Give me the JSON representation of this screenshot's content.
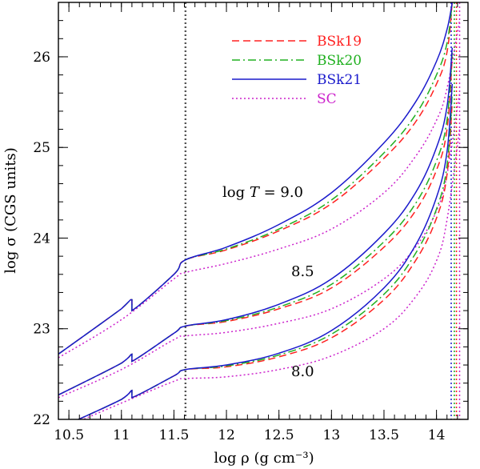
{
  "chart_data": {
    "type": "line",
    "xlabel": "log ρ (g cm⁻³)",
    "ylabel": "log σ (CGS units)",
    "xlim": [
      10.4,
      14.3
    ],
    "ylim": [
      22.0,
      26.6
    ],
    "xticks": [
      "10.5",
      "11",
      "11.5",
      "12",
      "12.5",
      "13",
      "13.5",
      "14"
    ],
    "xtick_values": [
      10.5,
      11.0,
      11.5,
      12.0,
      12.5,
      13.0,
      13.5,
      14.0
    ],
    "yticks": [
      "22",
      "23",
      "24",
      "25",
      "26"
    ],
    "ytick_values": [
      22,
      23,
      24,
      25,
      26
    ],
    "legend": [
      {
        "name": "BSk19",
        "color": "#ff2020",
        "dash": "dashed"
      },
      {
        "name": "BSk20",
        "color": "#20b020",
        "dash": "dashdot"
      },
      {
        "name": "BSk21",
        "color": "#1a1acc",
        "dash": "solid"
      },
      {
        "name": "SC",
        "color": "#cc22cc",
        "dash": "dotted"
      }
    ],
    "vertical_lines": [
      {
        "x": 11.61,
        "color": "#555555"
      },
      {
        "x": 14.14,
        "color": "#1a1acc"
      },
      {
        "x": 14.17,
        "color": "#20b020"
      },
      {
        "x": 14.19,
        "color": "#ff2020"
      },
      {
        "x": 14.22,
        "color": "#cc22cc"
      }
    ],
    "annotations": [
      {
        "label_prefix": "log ",
        "label_var": "T",
        "label_suffix": " = 9.0"
      },
      {
        "label": "8.5"
      },
      {
        "label": "8.0"
      }
    ],
    "groups": [
      {
        "name": "logT=9.0",
        "series": [
          {
            "name": "BSk21",
            "x": [
              10.4,
              11.0,
              11.1,
              11.1,
              11.5,
              11.61,
              12.0,
              12.5,
              13.0,
              13.5,
              13.8,
              14.0,
              14.1,
              14.15
            ],
            "y": [
              22.72,
              23.22,
              23.32,
              23.2,
              23.6,
              23.76,
              23.9,
              24.15,
              24.5,
              25.05,
              25.5,
              25.95,
              26.3,
              26.6
            ]
          },
          {
            "name": "BSk19",
            "x": [
              10.4,
              11.0,
              11.1,
              11.1,
              11.5,
              11.61,
              12.0,
              12.5,
              13.0,
              13.5,
              13.8,
              14.0,
              14.1,
              14.15
            ],
            "y": [
              22.72,
              23.22,
              23.32,
              23.2,
              23.6,
              23.76,
              23.87,
              24.08,
              24.38,
              24.88,
              25.28,
              25.7,
              26.05,
              26.6
            ]
          },
          {
            "name": "BSk20",
            "x": [
              10.4,
              11.0,
              11.1,
              11.1,
              11.5,
              11.61,
              12.0,
              12.5,
              13.0,
              13.5,
              13.8,
              14.0,
              14.1,
              14.15
            ],
            "y": [
              22.72,
              23.22,
              23.32,
              23.2,
              23.6,
              23.76,
              23.88,
              24.1,
              24.42,
              24.94,
              25.36,
              25.8,
              26.15,
              26.6
            ]
          },
          {
            "name": "SC",
            "x": [
              10.4,
              11.0,
              11.5,
              11.61,
              12.0,
              12.5,
              13.0,
              13.5,
              13.8,
              14.0,
              14.1,
              14.22
            ],
            "y": [
              22.68,
              23.1,
              23.55,
              23.62,
              23.72,
              23.88,
              24.1,
              24.5,
              24.9,
              25.3,
              25.65,
              26.4
            ]
          }
        ]
      },
      {
        "name": "logT=8.5",
        "series": [
          {
            "name": "BSk21",
            "x": [
              10.4,
              11.0,
              11.1,
              11.1,
              11.5,
              11.61,
              12.0,
              12.5,
              13.0,
              13.5,
              13.8,
              14.0,
              14.1,
              14.15
            ],
            "y": [
              22.27,
              22.62,
              22.72,
              22.64,
              22.95,
              23.03,
              23.1,
              23.27,
              23.55,
              24.05,
              24.5,
              25.0,
              25.45,
              26.1
            ]
          },
          {
            "name": "BSk19",
            "x": [
              10.4,
              11.0,
              11.1,
              11.1,
              11.5,
              11.61,
              12.0,
              12.5,
              13.0,
              13.5,
              13.8,
              14.0,
              14.1,
              14.15
            ],
            "y": [
              22.27,
              22.62,
              22.72,
              22.64,
              22.95,
              23.03,
              23.08,
              23.22,
              23.45,
              23.9,
              24.3,
              24.75,
              25.2,
              26.0
            ]
          },
          {
            "name": "BSk20",
            "x": [
              10.4,
              11.0,
              11.1,
              11.1,
              11.5,
              11.61,
              12.0,
              12.5,
              13.0,
              13.5,
              13.8,
              14.0,
              14.1,
              14.15
            ],
            "y": [
              22.27,
              22.62,
              22.72,
              22.64,
              22.95,
              23.03,
              23.09,
              23.24,
              23.49,
              23.96,
              24.38,
              24.85,
              25.3,
              26.05
            ]
          },
          {
            "name": "SC",
            "x": [
              10.4,
              11.0,
              11.5,
              11.61,
              12.0,
              12.5,
              13.0,
              13.5,
              13.8,
              14.0,
              14.1,
              14.22
            ],
            "y": [
              22.24,
              22.55,
              22.88,
              22.92,
              22.96,
              23.06,
              23.22,
              23.55,
              23.9,
              24.3,
              24.7,
              25.6
            ]
          }
        ]
      },
      {
        "name": "logT=8.0",
        "series": [
          {
            "name": "BSk21",
            "x": [
              10.4,
              11.0,
              11.1,
              11.1,
              11.5,
              11.61,
              12.0,
              12.5,
              13.0,
              13.5,
              13.8,
              14.0,
              14.1,
              14.15
            ],
            "y": [
              21.9,
              22.22,
              22.32,
              22.24,
              22.48,
              22.55,
              22.6,
              22.73,
              22.98,
              23.45,
              23.92,
              24.45,
              24.95,
              25.7
            ]
          },
          {
            "name": "BSk19",
            "x": [
              10.4,
              11.0,
              11.1,
              11.1,
              11.5,
              11.61,
              12.0,
              12.5,
              13.0,
              13.5,
              13.8,
              14.0,
              14.1,
              14.15
            ],
            "y": [
              21.9,
              22.22,
              22.32,
              22.24,
              22.48,
              22.55,
              22.58,
              22.69,
              22.9,
              23.32,
              23.75,
              24.22,
              24.7,
              25.5
            ]
          },
          {
            "name": "BSk20",
            "x": [
              10.4,
              11.0,
              11.1,
              11.1,
              11.5,
              11.61,
              12.0,
              12.5,
              13.0,
              13.5,
              13.8,
              14.0,
              14.1,
              14.15
            ],
            "y": [
              21.9,
              22.22,
              22.32,
              22.24,
              22.48,
              22.55,
              22.59,
              22.71,
              22.94,
              23.38,
              23.83,
              24.32,
              24.8,
              25.6
            ]
          },
          {
            "name": "SC",
            "x": [
              10.4,
              11.0,
              11.5,
              11.61,
              12.0,
              12.5,
              13.0,
              13.5,
              13.8,
              14.0,
              14.1,
              14.22
            ],
            "y": [
              21.88,
              22.18,
              22.42,
              22.45,
              22.47,
              22.55,
              22.7,
              23.0,
              23.35,
              23.75,
              24.2,
              25.2
            ]
          }
        ]
      }
    ]
  }
}
